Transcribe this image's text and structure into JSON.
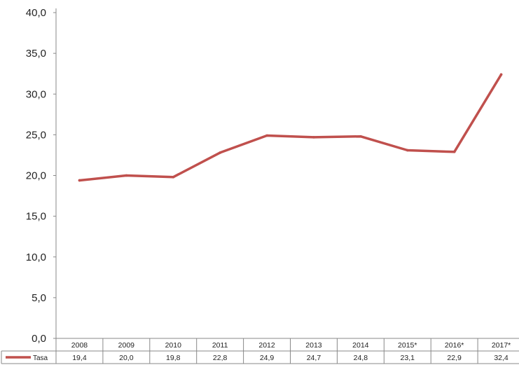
{
  "chart_data": {
    "type": "line",
    "categories": [
      "2008",
      "2009",
      "2010",
      "2011",
      "2012",
      "2013",
      "2014",
      "2015*",
      "2016*",
      "2017*"
    ],
    "series": [
      {
        "name": "Tasa",
        "values": [
          19.4,
          20.0,
          19.8,
          22.8,
          24.9,
          24.7,
          24.8,
          23.1,
          22.9,
          32.4
        ],
        "value_labels": [
          "19,4",
          "20,0",
          "19,8",
          "22,8",
          "24,9",
          "24,7",
          "24,8",
          "23,1",
          "22,9",
          "32,4"
        ],
        "color": "#c0504d"
      }
    ],
    "y_ticks": [
      "0,0",
      "5,0",
      "10,0",
      "15,0",
      "20,0",
      "25,0",
      "30,0",
      "35,0",
      "40,0"
    ],
    "ylim": [
      0,
      40
    ],
    "grid": false,
    "legend": "bottom-left (data table)"
  }
}
